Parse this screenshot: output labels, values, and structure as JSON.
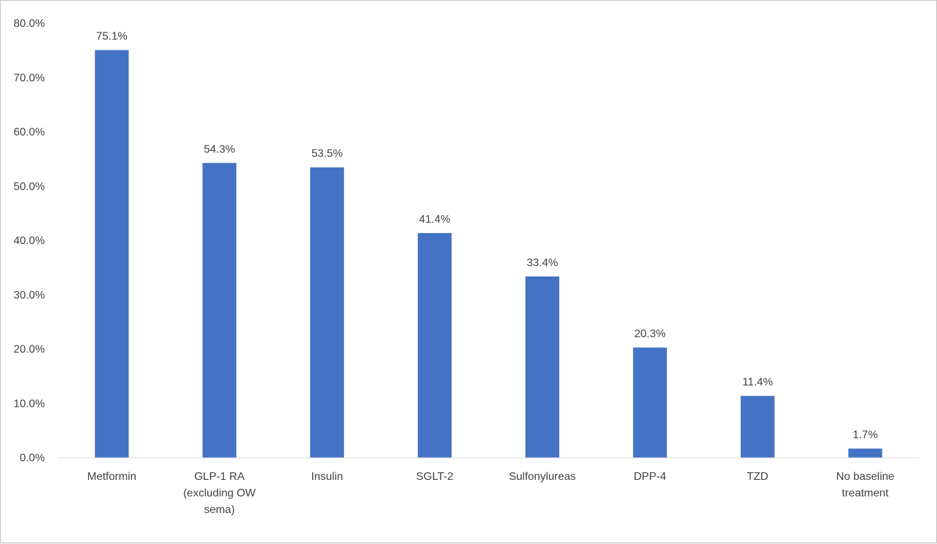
{
  "chart_data": {
    "type": "bar",
    "categories": [
      [
        "Metformin"
      ],
      [
        "GLP-1 RA",
        "(excluding OW",
        "sema)"
      ],
      [
        "Insulin"
      ],
      [
        "SGLT-2"
      ],
      [
        "Sulfonylureas"
      ],
      [
        "DPP-4"
      ],
      [
        "TZD"
      ],
      [
        "No baseline",
        "treatment"
      ]
    ],
    "values": [
      75.1,
      54.3,
      53.5,
      41.4,
      33.4,
      20.3,
      11.4,
      1.7
    ],
    "value_labels": [
      "75.1%",
      "54.3%",
      "53.5%",
      "41.4%",
      "33.4%",
      "20.3%",
      "11.4%",
      "1.7%"
    ],
    "yticks": [
      0,
      10,
      20,
      30,
      40,
      50,
      60,
      70,
      80
    ],
    "ytick_labels": [
      "0.0%",
      "10.0%",
      "20.0%",
      "30.0%",
      "40.0%",
      "50.0%",
      "60.0%",
      "70.0%",
      "80.0%"
    ],
    "ylim": [
      0,
      80
    ],
    "grid": false,
    "bar_color": "#4472c4",
    "title": "",
    "xlabel": "",
    "ylabel": ""
  }
}
